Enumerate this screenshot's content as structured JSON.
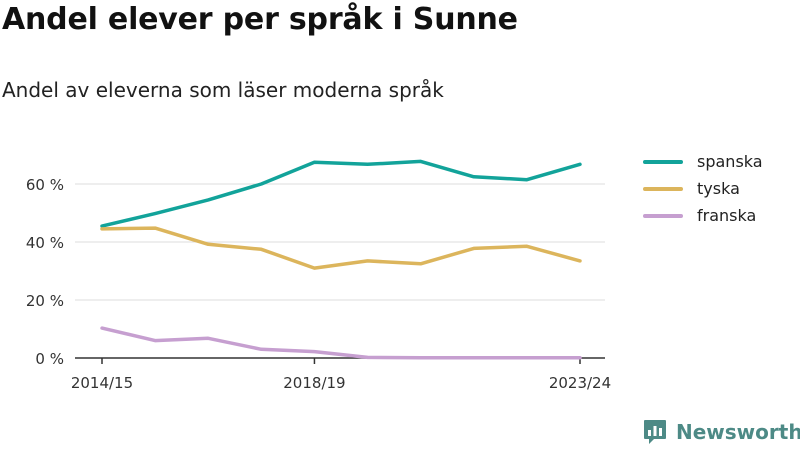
{
  "title": "Andel elever per språk i Sunne",
  "subtitle": "Andel av eleverna som läser moderna språk",
  "brand": {
    "name": "Newsworthy",
    "icon": "newsworthy-logo-icon"
  },
  "chart_data": {
    "type": "line",
    "x": [
      "2014/15",
      "2015/16",
      "2016/17",
      "2017/18",
      "2018/19",
      "2019/20",
      "2020/21",
      "2021/22",
      "2022/23",
      "2023/24"
    ],
    "x_tick_labels": [
      "2014/15",
      "2018/19",
      "2023/24"
    ],
    "y_ticks": [
      0,
      20,
      40,
      60
    ],
    "y_tick_labels": [
      "0 %",
      "20 %",
      "40 %",
      "60 %"
    ],
    "ylim": [
      0,
      72
    ],
    "grid": true,
    "legend_position": "right",
    "series": [
      {
        "name": "spanska",
        "color": "#12a39a",
        "values": [
          45.5,
          49.8,
          54.5,
          60.0,
          67.5,
          66.8,
          67.8,
          62.5,
          61.5,
          66.8
        ]
      },
      {
        "name": "tyska",
        "color": "#dcb55c",
        "values": [
          44.5,
          44.8,
          39.2,
          37.5,
          31.0,
          33.5,
          32.5,
          37.8,
          38.5,
          33.5
        ]
      },
      {
        "name": "franska",
        "color": "#c69fd0",
        "values": [
          10.3,
          6.0,
          6.8,
          3.0,
          2.2,
          0.2,
          0.1,
          0.1,
          0.1,
          0.1
        ]
      }
    ]
  }
}
